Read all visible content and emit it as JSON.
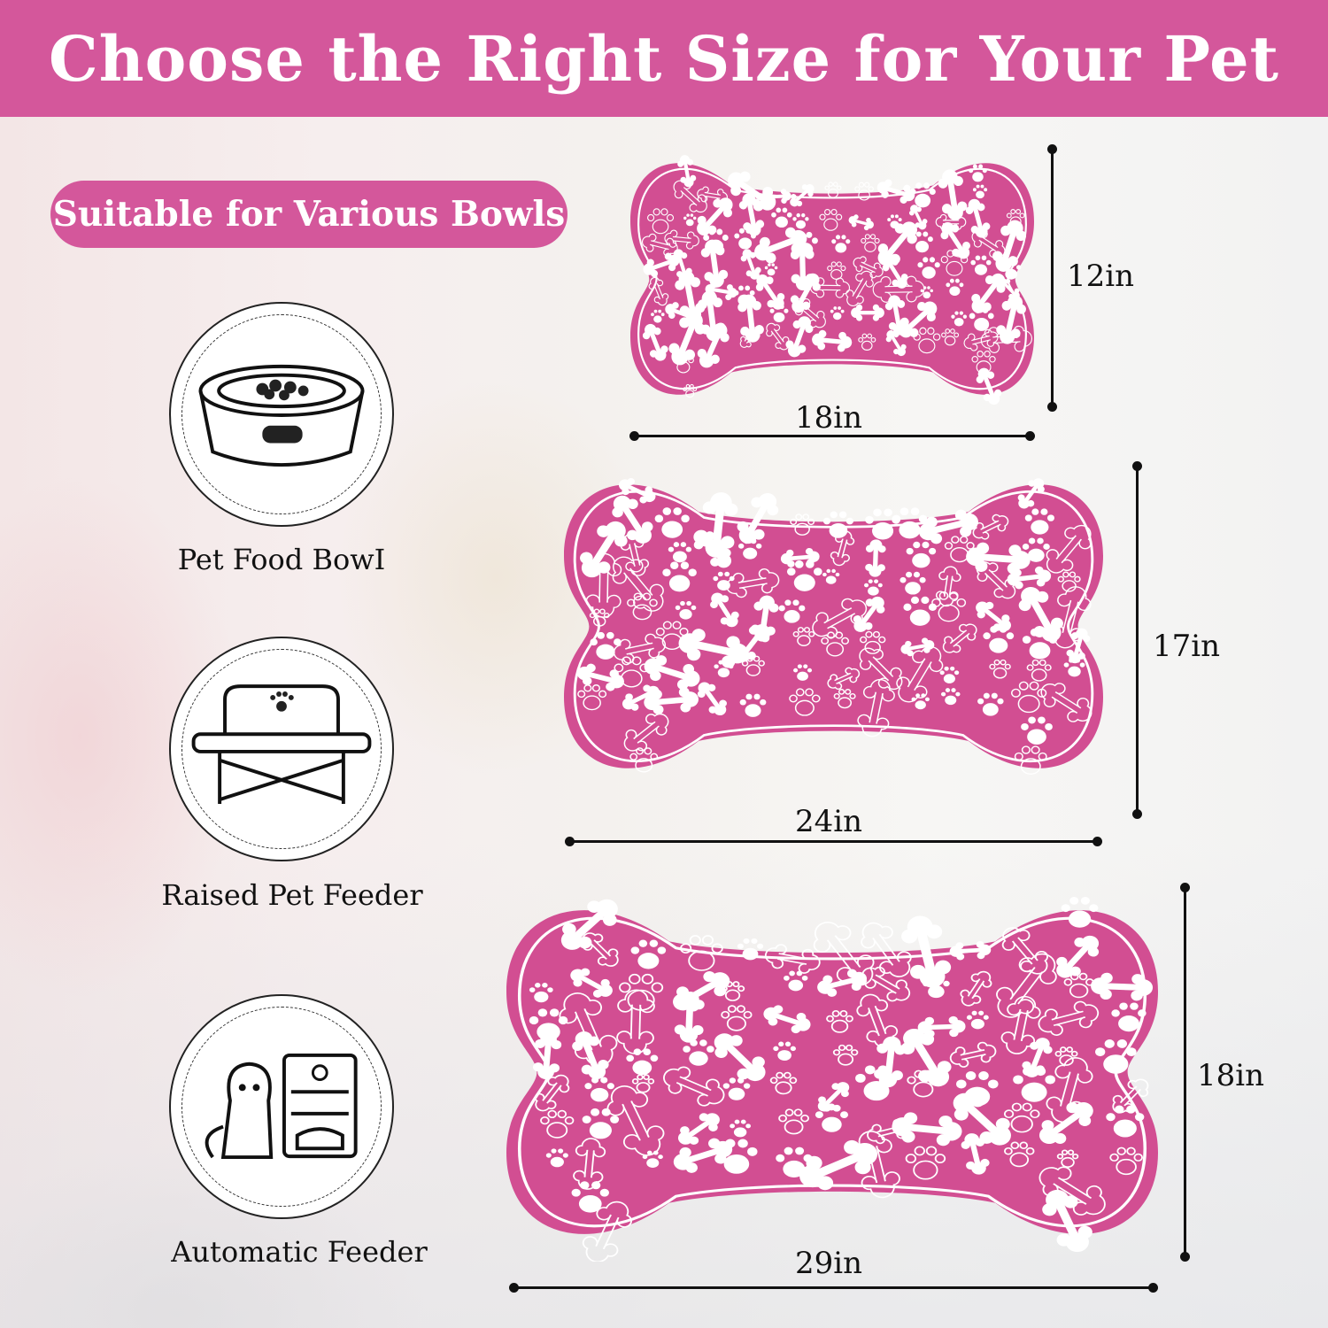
{
  "header": {
    "title": "Choose the Right Size for Your Pet"
  },
  "badge": {
    "text": "Suitable for Various Bowls"
  },
  "uses": [
    {
      "label": "Pet Food BowI",
      "icon": "pet-food-bowl-icon"
    },
    {
      "label": "Raised Pet Feeder",
      "icon": "raised-feeder-icon"
    },
    {
      "label": "Automatic Feeder",
      "icon": "automatic-feeder-icon"
    }
  ],
  "sizes": [
    {
      "width": "18in",
      "height": "12in"
    },
    {
      "width": "24in",
      "height": "17in"
    },
    {
      "width": "29in",
      "height": "18in"
    }
  ],
  "colors": {
    "brand_pink": "#d4579b",
    "mat_pink": "#d24e92",
    "pattern": "#ffffff"
  }
}
